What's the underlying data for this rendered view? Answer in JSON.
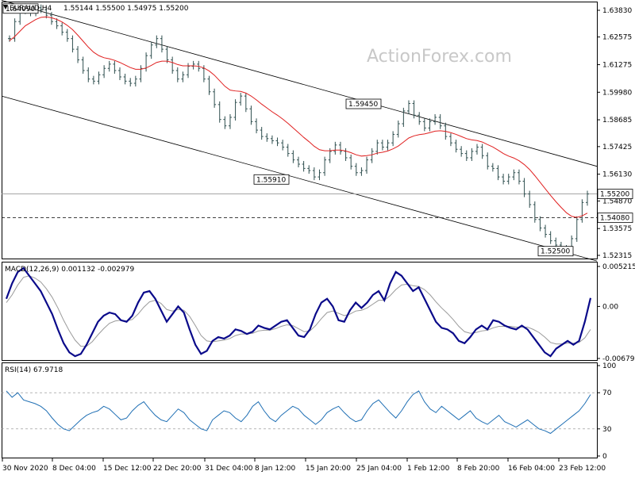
{
  "header": {
    "symbol": "EURAUD,H4",
    "ohlc": "1.55144 1.55500 1.54975 1.55200"
  },
  "watermark": "ActionForex.com",
  "colors": {
    "bars": "#2f4f4f",
    "ema": "#e02020",
    "channel": "#000000",
    "macd_main": "#0a0a8a",
    "macd_signal": "#9a9a9a",
    "rsi": "#1f6fb4",
    "grid_dash": "#000000"
  },
  "annotations": {
    "h_line_solid": "1.55200",
    "h_line_dashed": "1.54080",
    "labels": [
      "1.64090",
      "1.59450",
      "1.55910",
      "1.52500"
    ]
  },
  "macd_panel": {
    "title": "MACD(12,26,9) 0.001132 -0.002979",
    "ticks": [
      "0.005215",
      "0.00",
      "-0.006791"
    ]
  },
  "rsi_panel": {
    "title": "RSI(14) 67.9718",
    "ticks": [
      "100",
      "70",
      "30",
      "0"
    ]
  },
  "chart_data": [
    {
      "type": "ohlc",
      "title": "EURAUD,H4",
      "ylim": [
        1.52315,
        1.6409
      ],
      "y_ticks": [
        "1.63830",
        "1.62575",
        "1.61275",
        "1.59980",
        "1.58685",
        "1.57425",
        "1.56130",
        "1.54870",
        "1.53575",
        "1.52315"
      ],
      "x_ticks": [
        "30 Nov 2020",
        "8 Dec 04:00",
        "15 Dec 12:00",
        "22 Dec 20:00",
        "31 Dec 04:00",
        "8 Jan 12:00",
        "15 Jan 20:00",
        "25 Jan 04:00",
        "1 Feb 12:00",
        "8 Feb 20:00",
        "16 Feb 04:00",
        "23 Feb 12:00"
      ],
      "series": [
        {
          "name": "EURAUD,H4",
          "close": [
            1.625,
            1.633,
            1.638,
            1.64,
            1.637,
            1.6395,
            1.6385,
            1.636,
            1.633,
            1.631,
            1.628,
            1.625,
            1.62,
            1.615,
            1.61,
            1.606,
            1.605,
            1.608,
            1.611,
            1.613,
            1.61,
            1.607,
            1.605,
            1.604,
            1.606,
            1.611,
            1.617,
            1.622,
            1.625,
            1.62,
            1.615,
            1.61,
            1.606,
            1.608,
            1.612,
            1.613,
            1.611,
            1.606,
            1.6,
            1.594,
            1.587,
            1.584,
            1.588,
            1.595,
            1.598,
            1.592,
            1.586,
            1.582,
            1.579,
            1.578,
            1.577,
            1.576,
            1.574,
            1.571,
            1.568,
            1.566,
            1.564,
            1.563,
            1.56,
            1.562,
            1.568,
            1.572,
            1.575,
            1.572,
            1.569,
            1.565,
            1.562,
            1.563,
            1.568,
            1.572,
            1.576,
            1.574,
            1.576,
            1.58,
            1.585,
            1.591,
            1.5945,
            1.589,
            1.586,
            1.583,
            1.586,
            1.588,
            1.584,
            1.579,
            1.576,
            1.573,
            1.571,
            1.569,
            1.572,
            1.574,
            1.57,
            1.565,
            1.564,
            1.56,
            1.558,
            1.56,
            1.562,
            1.558,
            1.552,
            1.547,
            1.54,
            1.536,
            1.533,
            1.53,
            1.528,
            1.5265,
            1.525,
            1.531,
            1.54,
            1.548,
            1.552
          ]
        },
        {
          "name": "EMA",
          "close": [
            1.624,
            1.626,
            1.6285,
            1.631,
            1.6325,
            1.634,
            1.635,
            1.6352,
            1.6348,
            1.634,
            1.6328,
            1.6312,
            1.6292,
            1.6266,
            1.6238,
            1.621,
            1.6186,
            1.617,
            1.616,
            1.6155,
            1.6148,
            1.6138,
            1.6126,
            1.6114,
            1.6106,
            1.6106,
            1.6112,
            1.6124,
            1.6138,
            1.6144,
            1.6144,
            1.6138,
            1.6128,
            1.6122,
            1.6122,
            1.6122,
            1.612,
            1.6112,
            1.6098,
            1.6078,
            1.6052,
            1.6026,
            1.6008,
            1.6004,
            1.6002,
            1.5994,
            1.598,
            1.5962,
            1.5942,
            1.5924,
            1.5906,
            1.589,
            1.5872,
            1.5852,
            1.583,
            1.5808,
            1.5786,
            1.5766,
            1.5744,
            1.5728,
            1.5723,
            1.5723,
            1.5726,
            1.5726,
            1.5722,
            1.5714,
            1.5704,
            1.5698,
            1.57,
            1.5704,
            1.5712,
            1.5716,
            1.5722,
            1.5732,
            1.5745,
            1.5764,
            1.5783,
            1.5793,
            1.5799,
            1.5802,
            1.5808,
            1.5815,
            1.5817,
            1.5814,
            1.5808,
            1.58,
            1.579,
            1.578,
            1.5774,
            1.5771,
            1.5764,
            1.5752,
            1.5741,
            1.5726,
            1.571,
            1.5698,
            1.5689,
            1.5676,
            1.5658,
            1.5635,
            1.5606,
            1.5575,
            1.5544,
            1.5513,
            1.5484,
            1.5457,
            1.5432,
            1.5415,
            1.541,
            1.5417,
            1.543
          ]
        }
      ]
    },
    {
      "type": "line",
      "title": "MACD(12,26,9) 0.001132 -0.002979",
      "ylim": [
        -0.006791,
        0.005215
      ],
      "series": [
        {
          "name": "MACD",
          "values": [
            0.001,
            0.003,
            0.0045,
            0.005,
            0.004,
            0.003,
            0.002,
            0.0005,
            -0.001,
            -0.003,
            -0.0048,
            -0.006,
            -0.0065,
            -0.0062,
            -0.005,
            -0.0035,
            -0.002,
            -0.0012,
            -0.0008,
            -0.001,
            -0.0018,
            -0.002,
            -0.0012,
            0.0005,
            0.0018,
            0.002,
            0.001,
            -0.0005,
            -0.002,
            -0.001,
            0.0,
            -0.0008,
            -0.003,
            -0.005,
            -0.0062,
            -0.0058,
            -0.0045,
            -0.004,
            -0.0042,
            -0.0038,
            -0.003,
            -0.0032,
            -0.0036,
            -0.0033,
            -0.0025,
            -0.0028,
            -0.003,
            -0.0025,
            -0.002,
            -0.0018,
            -0.0028,
            -0.0038,
            -0.004,
            -0.003,
            -0.001,
            0.0005,
            0.001,
            0.0,
            -0.0018,
            -0.002,
            -0.0005,
            0.0005,
            -0.0002,
            0.0005,
            0.0015,
            0.002,
            0.0008,
            0.003,
            0.0045,
            0.004,
            0.003,
            0.002,
            0.0025,
            0.001,
            -0.0005,
            -0.002,
            -0.0028,
            -0.003,
            -0.0035,
            -0.0045,
            -0.0048,
            -0.004,
            -0.003,
            -0.0025,
            -0.003,
            -0.0018,
            -0.002,
            -0.0025,
            -0.0028,
            -0.003,
            -0.0025,
            -0.003,
            -0.004,
            -0.005,
            -0.006,
            -0.0065,
            -0.0055,
            -0.005,
            -0.0045,
            -0.005,
            -0.0045,
            -0.002,
            0.0011
          ]
        },
        {
          "name": "Signal",
          "values": [
            0.0005,
            0.0015,
            0.0028,
            0.0038,
            0.004,
            0.0037,
            0.0032,
            0.0023,
            0.0012,
            -0.0002,
            -0.0018,
            -0.0032,
            -0.0044,
            -0.0052,
            -0.0052,
            -0.0046,
            -0.0037,
            -0.0029,
            -0.0022,
            -0.0019,
            -0.0018,
            -0.0019,
            -0.0017,
            -0.001,
            -0.0001,
            0.0006,
            0.0008,
            0.0004,
            -0.0004,
            -0.0006,
            -0.0004,
            -0.0005,
            -0.0013,
            -0.0025,
            -0.0038,
            -0.0045,
            -0.0046,
            -0.0045,
            -0.0044,
            -0.0042,
            -0.0038,
            -0.0036,
            -0.0036,
            -0.0035,
            -0.0032,
            -0.0031,
            -0.0031,
            -0.0029,
            -0.0026,
            -0.0024,
            -0.0025,
            -0.0029,
            -0.0033,
            -0.0032,
            -0.0025,
            -0.0016,
            -0.0008,
            -0.0006,
            -0.0009,
            -0.0012,
            -0.001,
            -0.0006,
            -0.0005,
            -0.0002,
            0.0003,
            0.0008,
            0.0008,
            0.0014,
            0.0022,
            0.0028,
            0.0029,
            0.0027,
            0.0026,
            0.0022,
            0.0015,
            0.0006,
            -0.0002,
            -0.0009,
            -0.0017,
            -0.0026,
            -0.0033,
            -0.0035,
            -0.0034,
            -0.0032,
            -0.0031,
            -0.0028,
            -0.0026,
            -0.0026,
            -0.0026,
            -0.0027,
            -0.0027,
            -0.0027,
            -0.003,
            -0.0034,
            -0.004,
            -0.0047,
            -0.0049,
            -0.0049,
            -0.0048,
            -0.0048,
            -0.0047,
            -0.0041,
            -0.003
          ]
        }
      ]
    },
    {
      "type": "line",
      "title": "RSI(14) 67.9718",
      "ylim": [
        0,
        100
      ],
      "series": [
        {
          "name": "RSI(14)",
          "values": [
            72,
            65,
            70,
            62,
            60,
            58,
            55,
            50,
            42,
            35,
            30,
            28,
            34,
            40,
            45,
            48,
            50,
            55,
            52,
            46,
            40,
            42,
            50,
            56,
            60,
            52,
            45,
            40,
            38,
            45,
            52,
            48,
            40,
            35,
            30,
            28,
            40,
            45,
            50,
            48,
            42,
            38,
            45,
            55,
            60,
            50,
            42,
            38,
            45,
            50,
            55,
            52,
            45,
            40,
            35,
            40,
            48,
            52,
            55,
            48,
            42,
            38,
            40,
            50,
            58,
            62,
            55,
            48,
            42,
            50,
            60,
            68,
            72,
            60,
            52,
            48,
            55,
            50,
            45,
            40,
            45,
            50,
            42,
            38,
            35,
            40,
            45,
            38,
            35,
            32,
            36,
            40,
            35,
            30,
            28,
            25,
            30,
            35,
            40,
            45,
            50,
            58,
            68
          ]
        }
      ]
    }
  ]
}
